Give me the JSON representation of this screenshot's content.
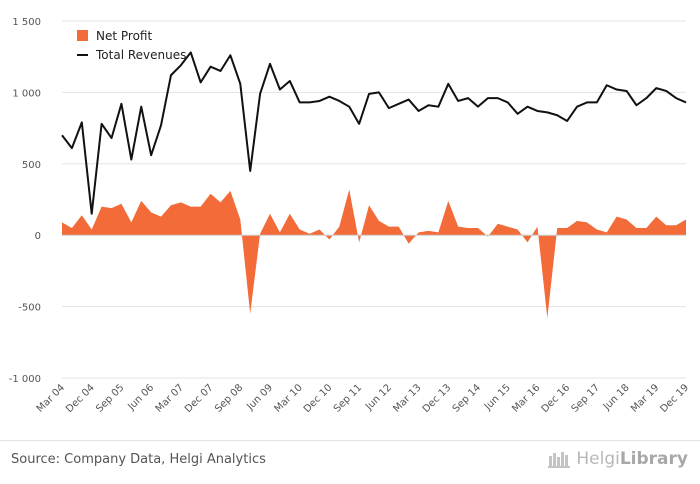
{
  "chart_data": {
    "type": "area-line",
    "ylim": [
      -1000,
      1500
    ],
    "yticks": [
      1500,
      1000,
      500,
      0,
      -500,
      -1000
    ],
    "ytick_labels": [
      "1 500",
      "1 000",
      "500",
      "0",
      "-500",
      "-1 000"
    ],
    "x_labels": [
      "Mar 04",
      "Dec 04",
      "Sep 05",
      "Jun 06",
      "Mar 07",
      "Dec 07",
      "Sep 08",
      "Jun 09",
      "Mar 10",
      "Dec 10",
      "Sep 11",
      "Jun 12",
      "Mar 13",
      "Dec 13",
      "Sep 14",
      "Jun 15",
      "Mar 16",
      "Dec 16",
      "Sep 17",
      "Jun 18",
      "Mar 19",
      "Dec 19"
    ],
    "label_every": 3,
    "series": [
      {
        "name": "Net Profit",
        "type": "area",
        "color": "#f26b38",
        "values": [
          90,
          50,
          140,
          40,
          200,
          190,
          220,
          90,
          240,
          160,
          130,
          210,
          230,
          200,
          200,
          290,
          230,
          310,
          110,
          -550,
          10,
          150,
          20,
          150,
          40,
          10,
          40,
          -30,
          60,
          320,
          -50,
          210,
          100,
          60,
          60,
          -60,
          20,
          30,
          20,
          240,
          60,
          50,
          50,
          -10,
          80,
          60,
          40,
          -50,
          60,
          -580,
          50,
          50,
          100,
          90,
          40,
          20,
          130,
          110,
          50,
          50,
          130,
          70,
          70,
          110
        ]
      },
      {
        "name": "Total Revenues",
        "type": "line",
        "color": "#111111",
        "values": [
          700,
          610,
          790,
          150,
          780,
          680,
          920,
          530,
          900,
          560,
          770,
          1120,
          1190,
          1280,
          1070,
          1180,
          1150,
          1260,
          1060,
          450,
          990,
          1200,
          1020,
          1080,
          930,
          930,
          940,
          970,
          940,
          900,
          780,
          990,
          1000,
          890,
          920,
          950,
          870,
          910,
          900,
          1060,
          940,
          960,
          900,
          960,
          960,
          930,
          850,
          900,
          870,
          860,
          840,
          800,
          900,
          930,
          930,
          1050,
          1020,
          1010,
          910,
          960,
          1030,
          1010,
          960,
          930
        ]
      }
    ],
    "legend": "top-left",
    "grid": true
  },
  "footer": {
    "source": "Source: Company Data, Helgi Analytics",
    "logo_light": "Helgi",
    "logo_bold": "Library"
  }
}
